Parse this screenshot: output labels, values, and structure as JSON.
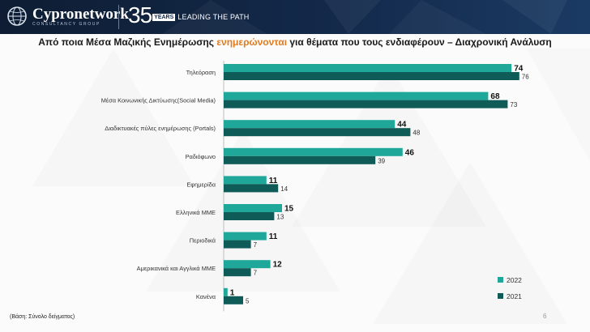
{
  "header": {
    "brand_name": "Cypronetwork",
    "brand_sub": "CONSULTANCY GROUP",
    "anniversary_number": "35",
    "anniversary_years": "YEARS",
    "anniversary_tagline": "LEADING THE PATH"
  },
  "page": {
    "title_before": "Από ποια Μέσα Μαζικής Ενημέρωσης ",
    "title_highlight": "ενημερώνονται",
    "title_after": " για θέματα που τους ενδιαφέρουν – Διαχρονική Ανάλυση",
    "footnote": "(Βάση: Σύνολο δείγματος)",
    "page_number": "6"
  },
  "colors": {
    "series_2022": "#1fa89a",
    "series_2021": "#0f5b57",
    "highlight": "#e07b1f",
    "header_bg": "#13294a"
  },
  "chart_data": {
    "type": "bar",
    "orientation": "horizontal",
    "categories": [
      "Τηλεόραση",
      "Μέσα Κοινωνικής Δικτύωσης(Social Media)",
      "Διαδικτυακές πύλες ενημέρωσης (Portals)",
      "Ραδιόφωνο",
      "Εφημερίδα",
      "Ελληνικά ΜΜΕ",
      "Περιοδικά",
      "Αμερικανικά και Αγγλικά ΜΜΕ",
      "Κανένα"
    ],
    "series": [
      {
        "name": "2022",
        "values": [
          74,
          68,
          44,
          46,
          11,
          15,
          11,
          12,
          1
        ]
      },
      {
        "name": "2021",
        "values": [
          76,
          73,
          48,
          39,
          14,
          13,
          7,
          7,
          5
        ]
      }
    ],
    "xlim": [
      0,
      80
    ],
    "grid": false,
    "legend_position": "bottom-right"
  }
}
